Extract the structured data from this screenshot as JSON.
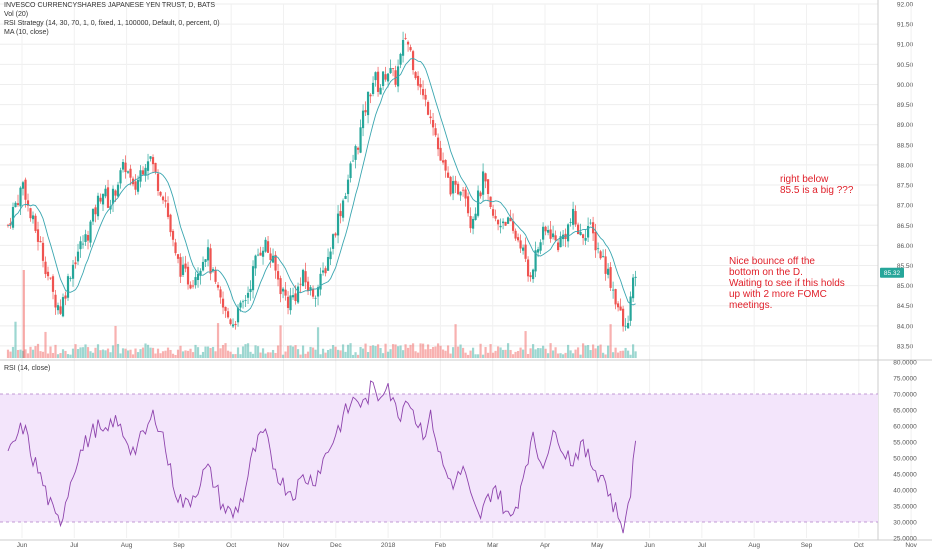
{
  "legend": {
    "title": "INVESCO CURRENCYSHARES JAPANESE YEN TRUST, D, BATS",
    "vol": "Vol (20)",
    "strategy": "RSI Strategy (14, 30, 70, 1, 0, fixed, 1, 100000, Default, 0, percent, 0)",
    "ma": "MA (10, close)"
  },
  "rsi_legend": "RSI (14, close)",
  "price_badge": "85.32",
  "annotations": {
    "note1": "right below\n85.5 is a big ???",
    "note2": "Nice bounce off the\nbottom on the D.\nWaiting to see if this holds\nup with 2 more FOMC\nmeetings."
  },
  "colors": {
    "up": "#26a69a",
    "down": "#ef5350",
    "ma": "#3aa6b0",
    "rsi_line": "#8e44ad",
    "rsi_band": "#f3e5fb",
    "note": "#e0202a",
    "badge": "#26a69a"
  },
  "chart_data": [
    {
      "type": "candlestick",
      "title": "INVESCO CURRENCYSHARES JAPANESE YEN TRUST, D, BATS",
      "x_tick_labels": [
        "Jun",
        "Jul",
        "Aug",
        "Sep",
        "Oct",
        "Nov",
        "Dec",
        "2018",
        "Feb",
        "Mar",
        "Apr",
        "May",
        "Jun",
        "Jul",
        "Aug",
        "Sep",
        "Oct",
        "Nov"
      ],
      "y_tick_labels": [
        "92.00",
        "91.50",
        "91.00",
        "90.50",
        "90.00",
        "89.50",
        "89.00",
        "88.50",
        "88.00",
        "87.50",
        "87.00",
        "86.50",
        "86.00",
        "85.50",
        "85.00",
        "84.50",
        "84.00",
        "83.50"
      ],
      "ylim": [
        83.2,
        92.0
      ],
      "grid": true,
      "close_series": [
        {
          "m": 0.0,
          "v": 86.5
        },
        {
          "m": 0.1,
          "v": 86.9
        },
        {
          "m": 0.2,
          "v": 87.2
        },
        {
          "m": 0.3,
          "v": 87.6
        },
        {
          "m": 0.4,
          "v": 86.8
        },
        {
          "m": 0.55,
          "v": 86.3
        },
        {
          "m": 0.7,
          "v": 85.6
        },
        {
          "m": 0.85,
          "v": 84.8
        },
        {
          "m": 1.0,
          "v": 84.4
        },
        {
          "m": 1.1,
          "v": 84.9
        },
        {
          "m": 1.2,
          "v": 85.4
        },
        {
          "m": 1.35,
          "v": 85.9
        },
        {
          "m": 1.5,
          "v": 86.2
        },
        {
          "m": 1.65,
          "v": 86.8
        },
        {
          "m": 1.8,
          "v": 87.4
        },
        {
          "m": 1.95,
          "v": 87.0
        },
        {
          "m": 2.1,
          "v": 87.6
        },
        {
          "m": 2.25,
          "v": 88.0
        },
        {
          "m": 2.4,
          "v": 87.3
        },
        {
          "m": 2.55,
          "v": 87.9
        },
        {
          "m": 2.7,
          "v": 88.3
        },
        {
          "m": 2.85,
          "v": 87.6
        },
        {
          "m": 3.0,
          "v": 87.2
        },
        {
          "m": 3.1,
          "v": 86.4
        },
        {
          "m": 3.2,
          "v": 85.7
        },
        {
          "m": 3.35,
          "v": 85.3
        },
        {
          "m": 3.5,
          "v": 85.1
        },
        {
          "m": 3.65,
          "v": 85.5
        },
        {
          "m": 3.8,
          "v": 85.9
        },
        {
          "m": 3.9,
          "v": 85.3
        },
        {
          "m": 4.0,
          "v": 84.8
        },
        {
          "m": 4.15,
          "v": 84.3
        },
        {
          "m": 4.3,
          "v": 84.1
        },
        {
          "m": 4.45,
          "v": 84.4
        },
        {
          "m": 4.6,
          "v": 84.9
        },
        {
          "m": 4.75,
          "v": 85.7
        },
        {
          "m": 4.9,
          "v": 86.1
        },
        {
          "m": 5.05,
          "v": 85.6
        },
        {
          "m": 5.2,
          "v": 85.0
        },
        {
          "m": 5.35,
          "v": 84.6
        },
        {
          "m": 5.5,
          "v": 84.8
        },
        {
          "m": 5.65,
          "v": 85.2
        },
        {
          "m": 5.8,
          "v": 84.8
        },
        {
          "m": 5.95,
          "v": 85.0
        },
        {
          "m": 6.1,
          "v": 85.6
        },
        {
          "m": 6.25,
          "v": 86.4
        },
        {
          "m": 6.4,
          "v": 87.1
        },
        {
          "m": 6.55,
          "v": 87.9
        },
        {
          "m": 6.7,
          "v": 88.6
        },
        {
          "m": 6.85,
          "v": 89.5
        },
        {
          "m": 7.0,
          "v": 90.2
        },
        {
          "m": 7.1,
          "v": 89.9
        },
        {
          "m": 7.25,
          "v": 90.4
        },
        {
          "m": 7.4,
          "v": 90.1
        },
        {
          "m": 7.5,
          "v": 90.6
        },
        {
          "m": 7.6,
          "v": 91.2
        },
        {
          "m": 7.7,
          "v": 90.8
        },
        {
          "m": 7.8,
          "v": 90.3
        },
        {
          "m": 7.95,
          "v": 89.6
        },
        {
          "m": 8.1,
          "v": 89.3
        },
        {
          "m": 8.25,
          "v": 88.2
        },
        {
          "m": 8.4,
          "v": 87.6
        },
        {
          "m": 8.55,
          "v": 87.3
        },
        {
          "m": 8.7,
          "v": 87.6
        },
        {
          "m": 8.85,
          "v": 86.6
        },
        {
          "m": 9.0,
          "v": 87.2
        },
        {
          "m": 9.1,
          "v": 87.7
        },
        {
          "m": 9.2,
          "v": 86.9
        },
        {
          "m": 9.35,
          "v": 86.5
        },
        {
          "m": 9.5,
          "v": 86.7
        },
        {
          "m": 9.65,
          "v": 86.3
        },
        {
          "m": 9.8,
          "v": 86.1
        },
        {
          "m": 9.95,
          "v": 85.2
        },
        {
          "m": 10.05,
          "v": 85.6
        },
        {
          "m": 10.2,
          "v": 86.2
        },
        {
          "m": 10.35,
          "v": 86.4
        },
        {
          "m": 10.5,
          "v": 86.0
        },
        {
          "m": 10.65,
          "v": 86.3
        },
        {
          "m": 10.8,
          "v": 86.7
        },
        {
          "m": 10.95,
          "v": 86.2
        },
        {
          "m": 11.1,
          "v": 86.5
        },
        {
          "m": 11.25,
          "v": 86.0
        },
        {
          "m": 11.4,
          "v": 85.6
        },
        {
          "m": 11.55,
          "v": 85.0
        },
        {
          "m": 11.7,
          "v": 84.3
        },
        {
          "m": 11.8,
          "v": 83.8
        },
        {
          "m": 11.9,
          "v": 84.6
        },
        {
          "m": 12.0,
          "v": 85.32
        }
      ]
    },
    {
      "type": "line",
      "title": "RSI (14, close)",
      "y_tick_labels": [
        "80.0000",
        "75.0000",
        "70.0000",
        "65.0000",
        "60.0000",
        "55.0000",
        "50.0000",
        "45.0000",
        "40.0000",
        "35.0000",
        "30.0000",
        "25.0000"
      ],
      "ylim": [
        25,
        80
      ],
      "band": [
        30,
        70
      ],
      "series": [
        {
          "m": 0.0,
          "v": 50
        },
        {
          "m": 0.15,
          "v": 56
        },
        {
          "m": 0.3,
          "v": 60
        },
        {
          "m": 0.45,
          "v": 51
        },
        {
          "m": 0.6,
          "v": 45
        },
        {
          "m": 0.75,
          "v": 38
        },
        {
          "m": 0.9,
          "v": 31
        },
        {
          "m": 1.0,
          "v": 30
        },
        {
          "m": 1.15,
          "v": 40
        },
        {
          "m": 1.3,
          "v": 49
        },
        {
          "m": 1.5,
          "v": 55
        },
        {
          "m": 1.7,
          "v": 60
        },
        {
          "m": 1.85,
          "v": 56
        },
        {
          "m": 2.0,
          "v": 62
        },
        {
          "m": 2.2,
          "v": 58
        },
        {
          "m": 2.4,
          "v": 52
        },
        {
          "m": 2.6,
          "v": 57
        },
        {
          "m": 2.8,
          "v": 64
        },
        {
          "m": 2.95,
          "v": 58
        },
        {
          "m": 3.1,
          "v": 46
        },
        {
          "m": 3.25,
          "v": 38
        },
        {
          "m": 3.4,
          "v": 35
        },
        {
          "m": 3.6,
          "v": 40
        },
        {
          "m": 3.8,
          "v": 47
        },
        {
          "m": 3.95,
          "v": 42
        },
        {
          "m": 4.1,
          "v": 35
        },
        {
          "m": 4.3,
          "v": 32
        },
        {
          "m": 4.5,
          "v": 38
        },
        {
          "m": 4.7,
          "v": 52
        },
        {
          "m": 4.9,
          "v": 58
        },
        {
          "m": 5.05,
          "v": 49
        },
        {
          "m": 5.25,
          "v": 42
        },
        {
          "m": 5.45,
          "v": 39
        },
        {
          "m": 5.65,
          "v": 44
        },
        {
          "m": 5.85,
          "v": 43
        },
        {
          "m": 6.05,
          "v": 50
        },
        {
          "m": 6.25,
          "v": 57
        },
        {
          "m": 6.45,
          "v": 64
        },
        {
          "m": 6.65,
          "v": 69
        },
        {
          "m": 6.8,
          "v": 66
        },
        {
          "m": 6.95,
          "v": 72
        },
        {
          "m": 7.1,
          "v": 69
        },
        {
          "m": 7.25,
          "v": 75
        },
        {
          "m": 7.35,
          "v": 67
        },
        {
          "m": 7.5,
          "v": 64
        },
        {
          "m": 7.65,
          "v": 70
        },
        {
          "m": 7.8,
          "v": 62
        },
        {
          "m": 7.95,
          "v": 58
        },
        {
          "m": 8.1,
          "v": 63
        },
        {
          "m": 8.25,
          "v": 51
        },
        {
          "m": 8.4,
          "v": 44
        },
        {
          "m": 8.55,
          "v": 42
        },
        {
          "m": 8.7,
          "v": 47
        },
        {
          "m": 8.85,
          "v": 37
        },
        {
          "m": 9.0,
          "v": 31
        },
        {
          "m": 9.15,
          "v": 36
        },
        {
          "m": 9.3,
          "v": 42
        },
        {
          "m": 9.45,
          "v": 36
        },
        {
          "m": 9.6,
          "v": 30
        },
        {
          "m": 9.75,
          "v": 37
        },
        {
          "m": 9.9,
          "v": 49
        },
        {
          "m": 10.05,
          "v": 56
        },
        {
          "m": 10.2,
          "v": 48
        },
        {
          "m": 10.35,
          "v": 54
        },
        {
          "m": 10.5,
          "v": 58
        },
        {
          "m": 10.65,
          "v": 52
        },
        {
          "m": 10.8,
          "v": 49
        },
        {
          "m": 10.95,
          "v": 54
        },
        {
          "m": 11.1,
          "v": 50
        },
        {
          "m": 11.25,
          "v": 46
        },
        {
          "m": 11.4,
          "v": 44
        },
        {
          "m": 11.55,
          "v": 36
        },
        {
          "m": 11.7,
          "v": 31
        },
        {
          "m": 11.8,
          "v": 28
        },
        {
          "m": 11.9,
          "v": 40
        },
        {
          "m": 12.0,
          "v": 56
        }
      ]
    }
  ]
}
